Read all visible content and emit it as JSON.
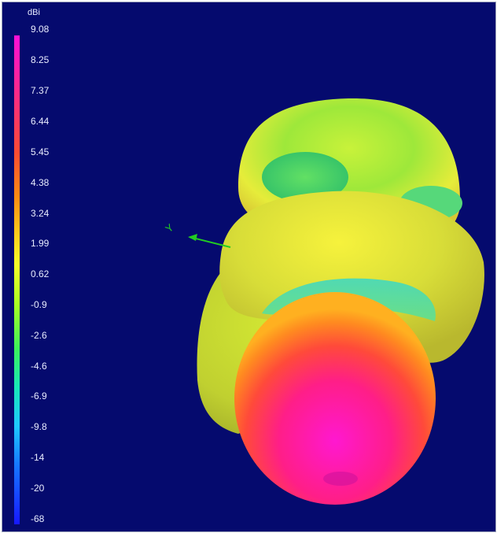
{
  "legend": {
    "unit": "dBi",
    "ticks": [
      "9.08",
      "8.25",
      "7.37",
      "6.44",
      "5.45",
      "4.38",
      "3.24",
      "1.99",
      "0.62",
      "-0.9",
      "-2.6",
      "-4.6",
      "-6.9",
      "-9.8",
      "-14",
      "-20",
      "-68"
    ],
    "gradient_colors": [
      "#ff10d8",
      "#ff2a86",
      "#ff4b32",
      "#ff8a12",
      "#ffc61a",
      "#f5ff28",
      "#a8ff22",
      "#3cf05a",
      "#18e8b8",
      "#1ec8ff",
      "#1676ff",
      "#1618ff"
    ]
  },
  "scene": {
    "background": "#050a6e",
    "axis_label": "Y",
    "axis_color": "#22cc22"
  }
}
